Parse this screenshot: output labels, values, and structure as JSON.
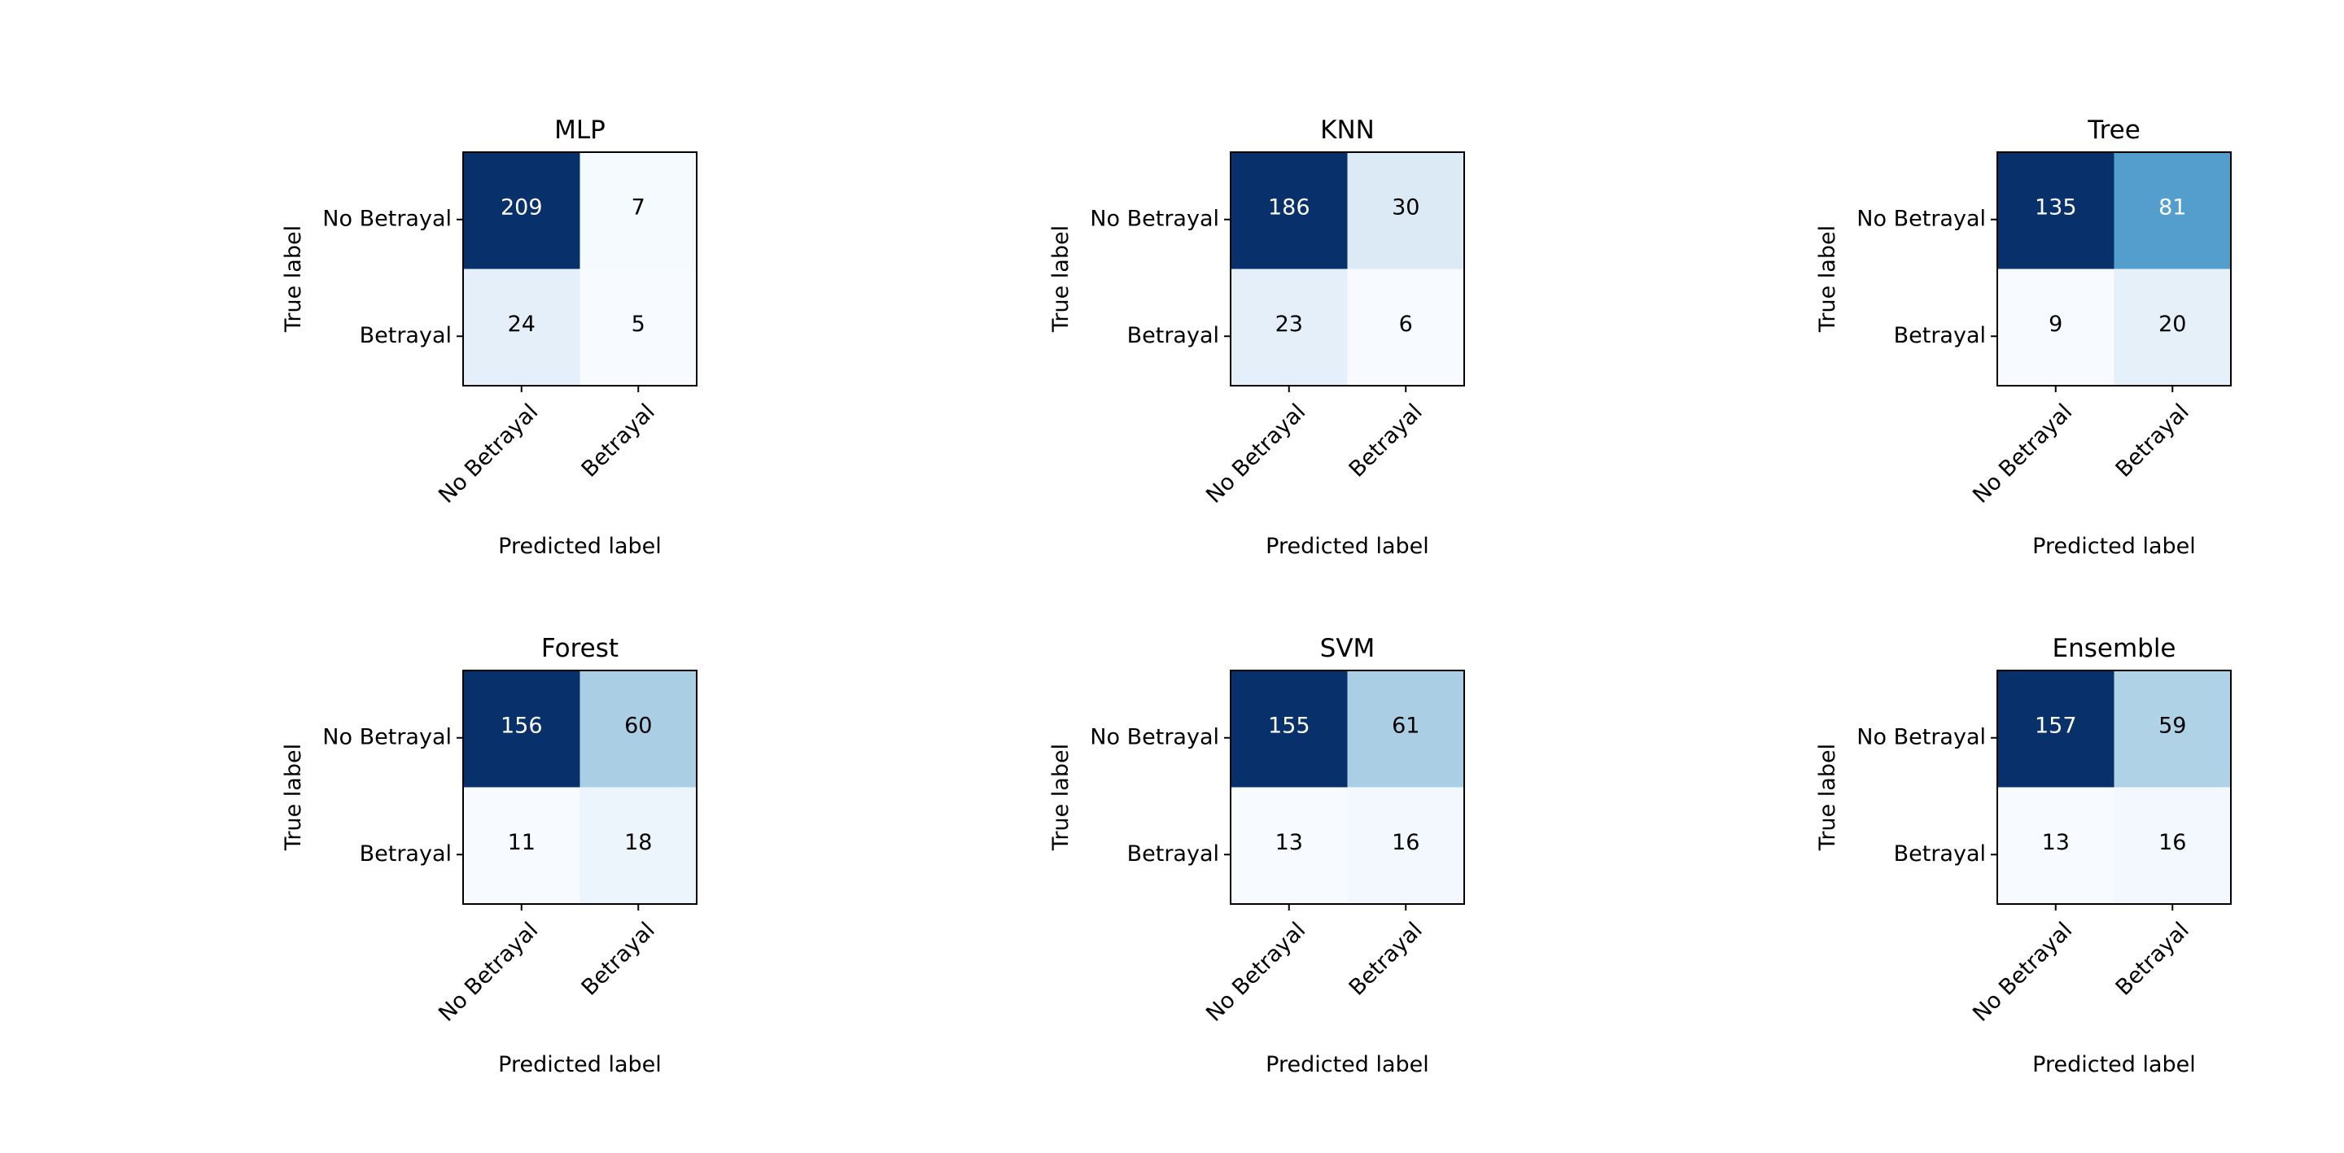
{
  "chart_data": [
    {
      "type": "heatmap",
      "title": "MLP",
      "xlabel": "Predicted label",
      "ylabel": "True label",
      "row_labels": [
        "No Betrayal",
        "Betrayal"
      ],
      "col_labels": [
        "No Betrayal",
        "Betrayal"
      ],
      "values": [
        [
          209,
          7
        ],
        [
          24,
          5
        ]
      ],
      "colormap": "Blues"
    },
    {
      "type": "heatmap",
      "title": "KNN",
      "xlabel": "Predicted label",
      "ylabel": "True label",
      "row_labels": [
        "No Betrayal",
        "Betrayal"
      ],
      "col_labels": [
        "No Betrayal",
        "Betrayal"
      ],
      "values": [
        [
          186,
          30
        ],
        [
          23,
          6
        ]
      ],
      "colormap": "Blues"
    },
    {
      "type": "heatmap",
      "title": "Tree",
      "xlabel": "Predicted label",
      "ylabel": "True label",
      "row_labels": [
        "No Betrayal",
        "Betrayal"
      ],
      "col_labels": [
        "No Betrayal",
        "Betrayal"
      ],
      "values": [
        [
          135,
          81
        ],
        [
          9,
          20
        ]
      ],
      "colormap": "Blues"
    },
    {
      "type": "heatmap",
      "title": "Forest",
      "xlabel": "Predicted label",
      "ylabel": "True label",
      "row_labels": [
        "No Betrayal",
        "Betrayal"
      ],
      "col_labels": [
        "No Betrayal",
        "Betrayal"
      ],
      "values": [
        [
          156,
          60
        ],
        [
          11,
          18
        ]
      ],
      "colormap": "Blues"
    },
    {
      "type": "heatmap",
      "title": "SVM",
      "xlabel": "Predicted label",
      "ylabel": "True label",
      "row_labels": [
        "No Betrayal",
        "Betrayal"
      ],
      "col_labels": [
        "No Betrayal",
        "Betrayal"
      ],
      "values": [
        [
          155,
          61
        ],
        [
          13,
          16
        ]
      ],
      "colormap": "Blues"
    },
    {
      "type": "heatmap",
      "title": "Ensemble",
      "xlabel": "Predicted label",
      "ylabel": "True label",
      "row_labels": [
        "No Betrayal",
        "Betrayal"
      ],
      "col_labels": [
        "No Betrayal",
        "Betrayal"
      ],
      "values": [
        [
          157,
          59
        ],
        [
          13,
          16
        ]
      ],
      "colormap": "Blues"
    }
  ]
}
